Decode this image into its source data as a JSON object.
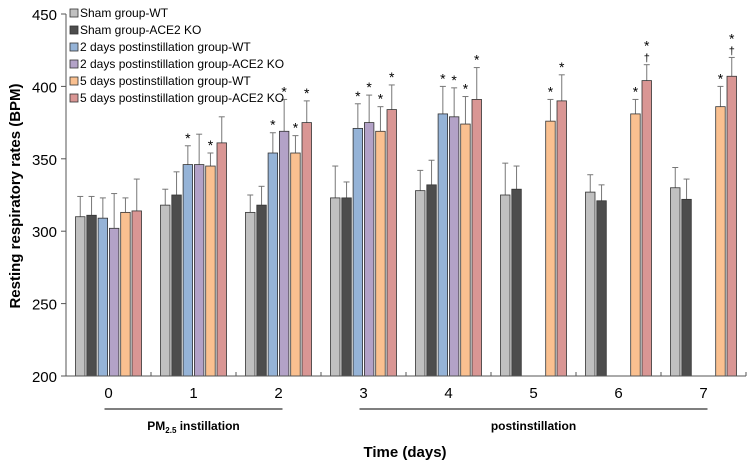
{
  "chart_data": {
    "type": "bar",
    "title": "",
    "xlabel": "Time (days)",
    "ylabel": "Resting respiratory rates (BPM)",
    "ylim": [
      200,
      450
    ],
    "yticks": [
      200,
      250,
      300,
      350,
      400,
      450
    ],
    "categories": [
      "0",
      "1",
      "2",
      "3",
      "4",
      "5",
      "6",
      "7"
    ],
    "legend_position": "top-left",
    "phase_labels": [
      {
        "text_main": "PM",
        "text_sub": "2.5",
        "text_rest": " instillation",
        "from": "0",
        "to": "2"
      },
      {
        "text_main": "postinstillation",
        "text_sub": "",
        "text_rest": "",
        "from": "3",
        "to": "7"
      }
    ],
    "significance_marks": {
      "star": "*",
      "dagger": "†"
    },
    "series": [
      {
        "name": "Sham group-WT",
        "color": "#c0c0c0",
        "values": [
          310,
          318,
          313,
          323,
          328,
          325,
          327,
          330
        ],
        "errors": [
          14,
          11,
          12,
          22,
          14,
          22,
          12,
          14
        ],
        "marks": [
          "",
          "",
          "",
          "",
          "",
          "",
          "",
          ""
        ]
      },
      {
        "name": "Sham group-ACE2 KO",
        "color": "#4d4d4d",
        "values": [
          311,
          325,
          318,
          323,
          332,
          329,
          321,
          322
        ],
        "errors": [
          13,
          16,
          13,
          11,
          17,
          16,
          11,
          14
        ],
        "marks": [
          "",
          "",
          "",
          "",
          "",
          "",
          "",
          ""
        ]
      },
      {
        "name": "2 days postinstillation group-WT",
        "color": "#95b3d7",
        "values": [
          309,
          346,
          354,
          371,
          381,
          null,
          null,
          null
        ],
        "errors": [
          14,
          13,
          14,
          17,
          19,
          null,
          null,
          null
        ],
        "marks": [
          "",
          "*",
          "*",
          "*",
          "*",
          "",
          "",
          ""
        ]
      },
      {
        "name": "2 days postinstillation group-ACE2 KO",
        "color": "#b3a2c7",
        "values": [
          302,
          346,
          369,
          375,
          379,
          null,
          null,
          null
        ],
        "errors": [
          24,
          21,
          22,
          19,
          20,
          null,
          null,
          null
        ],
        "marks": [
          "",
          "",
          "*",
          "*",
          "*",
          "",
          "",
          ""
        ]
      },
      {
        "name": "5 days postinstillation group-WT",
        "color": "#fac090",
        "values": [
          313,
          345,
          354,
          369,
          374,
          376,
          381,
          386
        ],
        "errors": [
          10,
          9,
          12,
          17,
          19,
          15,
          10,
          14
        ],
        "marks": [
          "",
          "*",
          "*",
          "*",
          "*",
          "*",
          "*",
          "*"
        ]
      },
      {
        "name": "5 days postinstillation group-ACE2 KO",
        "color": "#d99694",
        "values": [
          314,
          361,
          375,
          384,
          391,
          390,
          404,
          407
        ],
        "errors": [
          22,
          18,
          15,
          17,
          22,
          18,
          11,
          13
        ],
        "marks": [
          "",
          "",
          "*",
          "*",
          "*",
          "*",
          "*†",
          "*†"
        ]
      }
    ]
  }
}
